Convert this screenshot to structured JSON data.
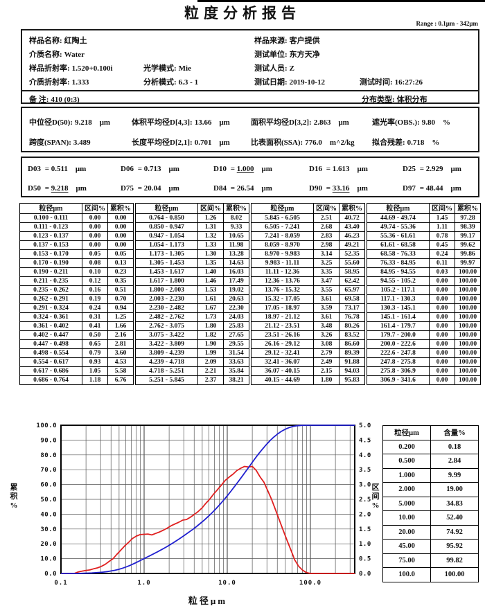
{
  "page": {
    "title": "粒度分析报告",
    "range_note": "Range : 0.1μm - 342μm"
  },
  "info": {
    "fields": [
      {
        "label": "样品名称:",
        "value": "红陶土"
      },
      {
        "label": "样品来源:",
        "value": "客户提供"
      },
      {
        "label": "介质名称:",
        "value": "Water"
      },
      {
        "label": "测试单位:",
        "value": "东方天净"
      },
      {
        "label": "样品折射率:",
        "value": "1.520+0.100i"
      },
      {
        "label": "光学模式:",
        "value": "Mie"
      },
      {
        "label": "测试人员:",
        "value": "Z"
      },
      {
        "label": "介质折射率:",
        "value": "1.333"
      },
      {
        "label": "分析模式:",
        "value": "6.3 - 1"
      },
      {
        "label": "测试日期:",
        "value": "2019-10-12"
      },
      {
        "label": "测试时间:",
        "value": "16:27:26"
      },
      {
        "label": "备  注:",
        "value": "410  (0:3)"
      },
      {
        "label": "分布类型:",
        "value": "体积分布"
      }
    ]
  },
  "stats": {
    "fields": [
      {
        "label": "中位径D(50):",
        "value": "9.218",
        "unit": "μm"
      },
      {
        "label": "体积平均径D[4,3]:",
        "value": "13.66",
        "unit": "μm"
      },
      {
        "label": "面积平均径D[3,2]:",
        "value": "2.863",
        "unit": "μm"
      },
      {
        "label": "遮光率(OBS.):",
        "value": "9.80",
        "unit": "%"
      },
      {
        "label": "跨度(SPAN):",
        "value": "3.489",
        "unit": ""
      },
      {
        "label": "长度平均径D[2,1]:",
        "value": "0.701",
        "unit": "μm"
      },
      {
        "label": "比表面积(SSA):",
        "value": "776.0",
        "unit": "m^2/kg"
      },
      {
        "label": "拟合残差:",
        "value": "0.718",
        "unit": "%"
      }
    ]
  },
  "dvalues": {
    "separator": "=",
    "fields": [
      {
        "name": "D03",
        "value": "0.511",
        "unit": "μm",
        "underline": false
      },
      {
        "name": "D06",
        "value": "0.713",
        "unit": "μm",
        "underline": false
      },
      {
        "name": "D10",
        "value": "1.000",
        "unit": "μm",
        "underline": true
      },
      {
        "name": "D16",
        "value": "1.613",
        "unit": "μm",
        "underline": false
      },
      {
        "name": "D25",
        "value": "2.929",
        "unit": "μm",
        "underline": false
      },
      {
        "name": "D50",
        "value": "9.218",
        "unit": "μm",
        "underline": true
      },
      {
        "name": "D75",
        "value": "20.04",
        "unit": "μm",
        "underline": false
      },
      {
        "name": "D84",
        "value": "26.54",
        "unit": "μm",
        "underline": false
      },
      {
        "name": "D90",
        "value": "33.16",
        "unit": "μm",
        "underline": true
      },
      {
        "name": "D97",
        "value": "48.44",
        "unit": "μm",
        "underline": false
      }
    ]
  },
  "table": {
    "headers": [
      "粒径μm",
      "区间%",
      "累积%"
    ],
    "bin_separator": " - "
  },
  "summary_table": {
    "headers": [
      "粒径μm",
      "含量%"
    ],
    "rows": [
      [
        "0.200",
        "0.18"
      ],
      [
        "0.500",
        "2.84"
      ],
      [
        "1.000",
        "9.99"
      ],
      [
        "2.000",
        "19.00"
      ],
      [
        "5.000",
        "34.83"
      ],
      [
        "10.00",
        "52.40"
      ],
      [
        "20.00",
        "74.92"
      ],
      [
        "45.00",
        "95.92"
      ],
      [
        "75.00",
        "99.82"
      ],
      [
        "100.0",
        "100.00"
      ]
    ]
  },
  "chart_data": {
    "type": "line",
    "x_log_scale": true,
    "xlabel": "粒径μm",
    "xlim": [
      0.1,
      341.6
    ],
    "x_tick_values": [
      0.1,
      1.0,
      10.0,
      100.0
    ],
    "x_tick_labels": [
      "0.1",
      "1.0",
      "10.0",
      "100.0"
    ],
    "left_axis": {
      "label": "累积%",
      "min": 0,
      "max": 100,
      "step": 10
    },
    "right_axis": {
      "label": "区间%",
      "min": 0,
      "max": 5,
      "step": 0.5
    },
    "grid": true,
    "bin_edges": [
      "0.100",
      "0.111",
      "0.123",
      "0.137",
      "0.153",
      "0.170",
      "0.190",
      "0.211",
      "0.235",
      "0.262",
      "0.291",
      "0.324",
      "0.361",
      "0.402",
      "0.447",
      "0.498",
      "0.554",
      "0.617",
      "0.686",
      "0.764",
      "0.850",
      "0.947",
      "1.054",
      "1.173",
      "1.305",
      "1.453",
      "1.617",
      "1.800",
      "2.003",
      "2.230",
      "2.482",
      "2.762",
      "3.075",
      "3.422",
      "3.809",
      "4.239",
      "4.718",
      "5.251",
      "5.845",
      "6.505",
      "7.241",
      "8.059",
      "8.970",
      "9.983",
      "11.11",
      "12.36",
      "13.76",
      "15.32",
      "17.05",
      "18.97",
      "21.12",
      "23.51",
      "26.16",
      "29.12",
      "32.41",
      "36.07",
      "40.15",
      "44.69",
      "49.74",
      "55.36",
      "61.61",
      "68.58",
      "76.33",
      "84.95",
      "94.55",
      "105.2",
      "117.1",
      "130.3",
      "145.1",
      "161.4",
      "179.7",
      "200.0",
      "222.6",
      "247.8",
      "275.8",
      "306.9",
      "341.6"
    ],
    "series": [
      {
        "name": "区间%",
        "axis": "right",
        "x_mode": "midpoint",
        "color": "#e02020",
        "values": [
          0.0,
          0.0,
          0.0,
          0.0,
          0.05,
          0.08,
          0.1,
          0.12,
          0.16,
          0.19,
          0.24,
          0.31,
          0.41,
          0.5,
          0.65,
          0.79,
          0.93,
          1.05,
          1.18,
          1.26,
          1.31,
          1.32,
          1.33,
          1.3,
          1.35,
          1.4,
          1.46,
          1.53,
          1.61,
          1.67,
          1.73,
          1.8,
          1.82,
          1.9,
          1.99,
          2.09,
          2.21,
          2.37,
          2.51,
          2.68,
          2.83,
          2.98,
          3.14,
          3.25,
          3.35,
          3.47,
          3.55,
          3.61,
          3.59,
          3.61,
          3.48,
          3.26,
          3.08,
          2.79,
          2.49,
          2.15,
          1.8,
          1.45,
          1.11,
          0.78,
          0.45,
          0.24,
          0.11,
          0.03,
          0.0,
          0.0,
          0.0,
          0.0,
          0.0,
          0.0,
          0.0,
          0.0,
          0.0,
          0.0,
          0.0,
          0.0
        ]
      },
      {
        "name": "累积%",
        "axis": "left",
        "x_mode": "upper_edge",
        "color": "#2020d0",
        "values": [
          0.0,
          0.0,
          0.0,
          0.0,
          0.05,
          0.13,
          0.23,
          0.35,
          0.51,
          0.7,
          0.94,
          1.25,
          1.66,
          2.16,
          2.81,
          3.6,
          4.53,
          5.58,
          6.76,
          8.02,
          9.33,
          10.65,
          11.98,
          13.28,
          14.63,
          16.03,
          17.49,
          19.02,
          20.63,
          22.3,
          24.03,
          25.83,
          27.65,
          29.55,
          31.54,
          33.63,
          35.84,
          38.21,
          40.72,
          43.4,
          46.23,
          49.21,
          52.35,
          55.6,
          58.95,
          62.42,
          65.97,
          69.58,
          73.17,
          76.78,
          80.26,
          83.52,
          86.6,
          89.39,
          91.88,
          94.03,
          95.83,
          97.28,
          98.39,
          99.17,
          99.62,
          99.86,
          99.97,
          100.0,
          100.0,
          100.0,
          100.0,
          100.0,
          100.0,
          100.0,
          100.0,
          100.0,
          100.0,
          100.0,
          100.0,
          100.0
        ]
      }
    ]
  }
}
